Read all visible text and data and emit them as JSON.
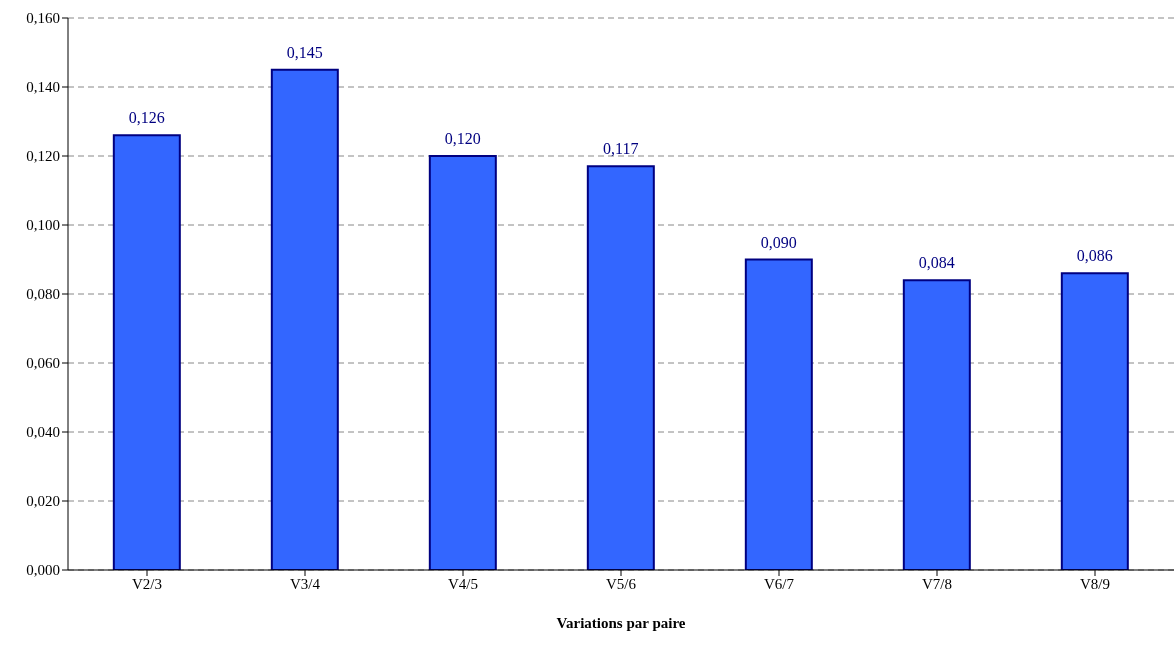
{
  "chart_data": {
    "type": "bar",
    "xlabel": "Variations par paire",
    "categories": [
      "V2/3",
      "V3/4",
      "V4/5",
      "V5/6",
      "V6/7",
      "V7/8",
      "V8/9"
    ],
    "values": [
      0.126,
      0.145,
      0.12,
      0.117,
      0.09,
      0.084,
      0.086
    ],
    "value_labels": [
      "0,126",
      "0,145",
      "0,120",
      "0,117",
      "0,090",
      "0,084",
      "0,086"
    ],
    "color": "#3366ff",
    "ylim": [
      0,
      0.16
    ],
    "yticks": [
      {
        "value": 0,
        "label": "0,000"
      },
      {
        "value": 0.02,
        "label": "0,020"
      },
      {
        "value": 0.04,
        "label": "0,040"
      },
      {
        "value": 0.06,
        "label": "0,060"
      },
      {
        "value": 0.08,
        "label": "0,080"
      },
      {
        "value": 0.1,
        "label": "0,100"
      },
      {
        "value": 0.12,
        "label": "0,120"
      },
      {
        "value": 0.14,
        "label": "0,140"
      },
      {
        "value": 0.16,
        "label": "0,160"
      }
    ],
    "grid": "y"
  }
}
